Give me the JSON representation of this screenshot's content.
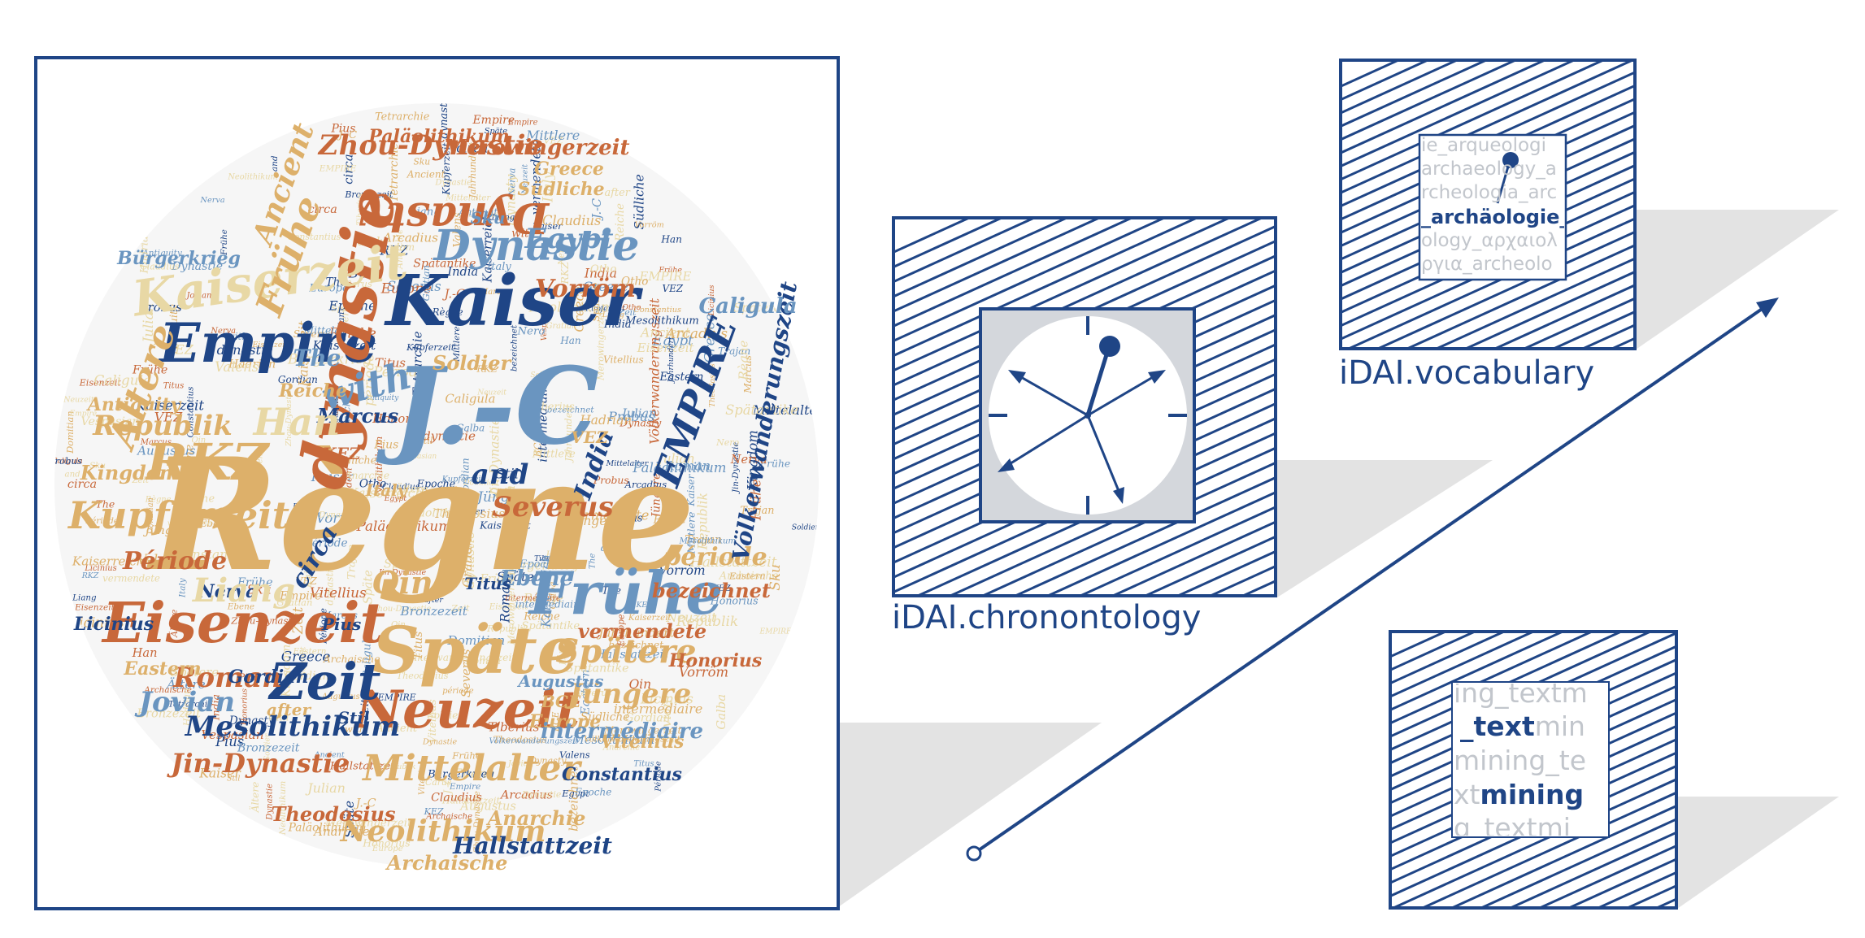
{
  "colors": {
    "navy": "#1f4586",
    "orange": "#c8683a",
    "gold": "#ddb06a",
    "sand": "#e8d8a5",
    "blue": "#6a95c0",
    "shadow": "#e3e3e3",
    "clockbg": "#d4d7dc"
  },
  "icons": [
    "word-cloud-image",
    "clock-icon",
    "vocabulary-icon",
    "text-mining-icon",
    "growth-arrow-icon"
  ],
  "captions": {
    "chronontology": "iDAI.chronontology",
    "vocabulary": "iDAI.vocabulary"
  },
  "vocabulary_lines": [
    "ie_arqueologi",
    "archaeology_a",
    "rcheologia_arc",
    "_archäologie_",
    "ology_αρχαιολ",
    "ργια_archeolo"
  ],
  "textmining": {
    "line1": "ing_textm",
    "line2_bold": "_text",
    "line2_rest": "min",
    "line3": "mining_te",
    "line4_rest": "xt",
    "line4_bold": "mining",
    "line5": "g_textmi"
  },
  "wordcloud": {
    "words": [
      {
        "t": "Règne",
        "c": "gold"
      },
      {
        "t": "Kaiser",
        "c": "navy"
      },
      {
        "t": "J.-C",
        "c": "blue"
      },
      {
        "t": "Empire",
        "c": "navy"
      },
      {
        "t": "dynastie",
        "c": "orange"
      },
      {
        "t": "Eisenzeit",
        "c": "orange"
      },
      {
        "t": "Späte",
        "c": "gold"
      },
      {
        "t": "Frühe",
        "c": "blue"
      },
      {
        "t": "Neuzeit",
        "c": "orange"
      },
      {
        "t": "Zeit",
        "c": "navy"
      },
      {
        "t": "Dynastie",
        "c": "blue"
      },
      {
        "t": "Kaiserzeit",
        "c": "sand"
      },
      {
        "t": "Dynasty",
        "c": "orange"
      },
      {
        "t": "RKZ",
        "c": "gold"
      },
      {
        "t": "Kupferzeit",
        "c": "gold"
      },
      {
        "t": "Mittelalter",
        "c": "gold"
      },
      {
        "t": "Neolithikum",
        "c": "gold"
      },
      {
        "t": "Spätere",
        "c": "gold"
      },
      {
        "t": "Jüngere",
        "c": "gold"
      },
      {
        "t": "Roman",
        "c": "orange"
      },
      {
        "t": "Jovian",
        "c": "blue"
      },
      {
        "t": "Mesolithikum",
        "c": "navy"
      },
      {
        "t": "Zhou-Dynastie",
        "c": "orange"
      },
      {
        "t": "Republik",
        "c": "gold"
      },
      {
        "t": "Kingdom",
        "c": "gold"
      },
      {
        "t": "Période",
        "c": "orange"
      },
      {
        "t": "période",
        "c": "gold"
      },
      {
        "t": "bezeichnet",
        "c": "orange"
      },
      {
        "t": "vermendete",
        "c": "orange"
      },
      {
        "t": "Severus",
        "c": "orange"
      },
      {
        "t": "and",
        "c": "navy"
      },
      {
        "t": "with",
        "c": "blue"
      },
      {
        "t": "Qin",
        "c": "gold"
      },
      {
        "t": "circa",
        "c": "navy"
      },
      {
        "t": "India",
        "c": "navy"
      },
      {
        "t": "Egypt",
        "c": "blue"
      },
      {
        "t": "Vorröm",
        "c": "orange"
      },
      {
        "t": "Ältere",
        "c": "gold"
      },
      {
        "t": "Frühe",
        "c": "gold"
      },
      {
        "t": "Jin-Dynastie",
        "c": "orange"
      },
      {
        "t": "Theodosius",
        "c": "orange"
      },
      {
        "t": "Anarchie",
        "c": "gold"
      },
      {
        "t": "Hallstattzeit",
        "c": "navy"
      },
      {
        "t": "Archaische",
        "c": "gold"
      },
      {
        "t": "Constantius",
        "c": "navy"
      },
      {
        "t": "Vitellius",
        "c": "gold"
      },
      {
        "t": "Honorius",
        "c": "orange"
      },
      {
        "t": "Europe",
        "c": "gold"
      },
      {
        "t": "intermédiaire",
        "c": "blue"
      },
      {
        "t": "EMPIRE",
        "c": "navy"
      },
      {
        "t": "Ebene",
        "c": "blue"
      },
      {
        "t": "Marcus",
        "c": "navy"
      },
      {
        "t": "Gordian",
        "c": "navy"
      },
      {
        "t": "Eastern",
        "c": "gold"
      },
      {
        "t": "Nerva",
        "c": "navy"
      },
      {
        "t": "Pius",
        "c": "navy"
      },
      {
        "t": "Titus",
        "c": "navy"
      },
      {
        "t": "Liang",
        "c": "sand"
      },
      {
        "t": "Han",
        "c": "sand"
      },
      {
        "t": "Völkerwanderungszeit",
        "c": "navy"
      },
      {
        "t": "Merowingerzeit",
        "c": "orange"
      },
      {
        "t": "Greece",
        "c": "gold"
      },
      {
        "t": "Südliche",
        "c": "gold"
      },
      {
        "t": "Caligula",
        "c": "blue"
      },
      {
        "t": "Antiquity",
        "c": "gold"
      },
      {
        "t": "Bürgerkrieg",
        "c": "blue"
      },
      {
        "t": "The",
        "c": "blue"
      },
      {
        "t": "Soldier",
        "c": "gold"
      },
      {
        "t": "Reiche",
        "c": "gold"
      },
      {
        "t": "Ancient",
        "c": "gold"
      },
      {
        "t": "Paläolithikum",
        "c": "orange"
      },
      {
        "t": "Stil",
        "c": "navy"
      },
      {
        "t": "after",
        "c": "gold"
      },
      {
        "t": "BCE",
        "c": "gold"
      },
      {
        "t": "Italy",
        "c": "gold"
      },
      {
        "t": "Sku",
        "c": "blue"
      },
      {
        "t": "VEZ",
        "c": "gold"
      },
      {
        "t": "KEZ",
        "c": "orange"
      },
      {
        "t": "Licinius",
        "c": "navy"
      },
      {
        "t": "Augustus",
        "c": "blue"
      },
      {
        "t": "Jahrhundert",
        "c": "sand"
      },
      {
        "t": "Epoche",
        "c": "gold"
      },
      {
        "t": "Mittlere",
        "c": "sand"
      },
      {
        "t": "Kaiserreich",
        "c": "sand"
      },
      {
        "t": "Spätantike",
        "c": "orange"
      },
      {
        "t": "Bronzezeit",
        "c": "gold"
      },
      {
        "t": "Tetrarchie",
        "c": "blue"
      },
      {
        "t": "Hadrian",
        "c": "orange"
      },
      {
        "t": "Trajan",
        "c": "gold"
      },
      {
        "t": "Nero",
        "c": "navy"
      },
      {
        "t": "Claudius",
        "c": "orange"
      },
      {
        "t": "Tiberius",
        "c": "gold"
      },
      {
        "t": "Vespasian",
        "c": "blue"
      },
      {
        "t": "Domitian",
        "c": "gold"
      },
      {
        "t": "Galba",
        "c": "orange"
      },
      {
        "t": "Otho",
        "c": "navy"
      },
      {
        "t": "Probus",
        "c": "gold"
      },
      {
        "t": "Carus",
        "c": "blue"
      },
      {
        "t": "Julian",
        "c": "orange"
      },
      {
        "t": "Valens",
        "c": "gold"
      },
      {
        "t": "Gratian",
        "c": "navy"
      },
      {
        "t": "Arcadius",
        "c": "gold"
      }
    ]
  }
}
